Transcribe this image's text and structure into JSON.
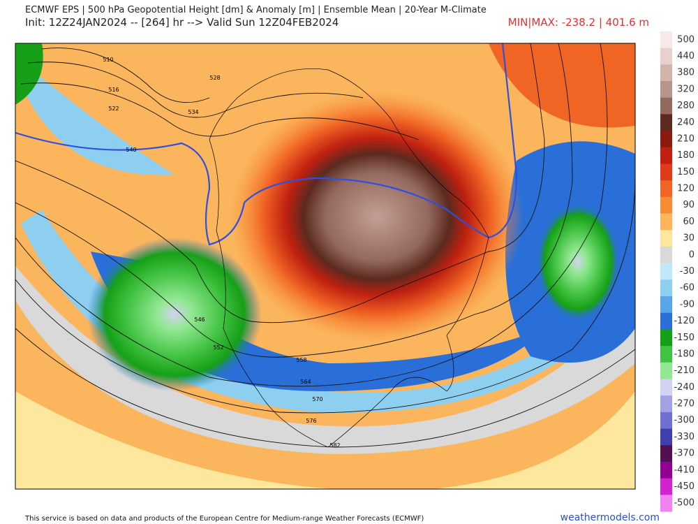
{
  "header": {
    "line1": "ECMWF EPS | 500 hPa Geopotential Height [dm] & Anomaly [m] | Ensemble Mean | 20-Year M-Climate",
    "line2": "Init: 12Z24JAN2024 -- [264] hr --> Valid Sun 12Z04FEB2024",
    "minmax": "MIN|MAX: -238.2 | 401.6 m"
  },
  "colorbar": [
    {
      "label": "500",
      "color": "#f7e9e9"
    },
    {
      "label": "440",
      "color": "#e6d1cd"
    },
    {
      "label": "380",
      "color": "#d2b3ac"
    },
    {
      "label": "320",
      "color": "#b8948b"
    },
    {
      "label": "280",
      "color": "#946a60"
    },
    {
      "label": "240",
      "color": "#5c2a1f"
    },
    {
      "label": "210",
      "color": "#8c1a10"
    },
    {
      "label": "180",
      "color": "#bf2010"
    },
    {
      "label": "150",
      "color": "#e03a1a"
    },
    {
      "label": "120",
      "color": "#f06424"
    },
    {
      "label": "90",
      "color": "#f88c34"
    },
    {
      "label": "60",
      "color": "#fbb55c"
    },
    {
      "label": "30",
      "color": "#fde79c"
    },
    {
      "label": "0",
      "color": "#d9d9d9"
    },
    {
      "label": "-30",
      "color": "#bfe8f8"
    },
    {
      "label": "-60",
      "color": "#8ecff0"
    },
    {
      "label": "-90",
      "color": "#58a6e8"
    },
    {
      "label": "-120",
      "color": "#2a6ed8"
    },
    {
      "label": "-150",
      "color": "#16a018"
    },
    {
      "label": "-180",
      "color": "#42c242"
    },
    {
      "label": "-210",
      "color": "#92e892"
    },
    {
      "label": "-240",
      "color": "#d2d2f2"
    },
    {
      "label": "-270",
      "color": "#a2a2e2"
    },
    {
      "label": "-300",
      "color": "#7070d0"
    },
    {
      "label": "-330",
      "color": "#3f3fae"
    },
    {
      "label": "-370",
      "color": "#521052"
    },
    {
      "label": "-410",
      "color": "#920092"
    },
    {
      "label": "-450",
      "color": "#d222d2"
    },
    {
      "label": "-500",
      "color": "#f282f2"
    }
  ],
  "contour_labels": [
    "510",
    "516",
    "522",
    "528",
    "534",
    "540",
    "546",
    "552",
    "558",
    "564",
    "570",
    "576",
    "582"
  ],
  "footer": {
    "notice": "This service is based on data and products of the European Centre for Medium-range Weather Forecasts (ECMWF)",
    "site": "weathermodels.com"
  }
}
